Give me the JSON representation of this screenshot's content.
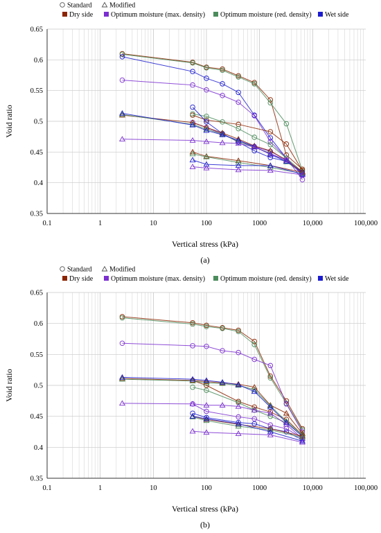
{
  "legend_markers": {
    "standard": "Standard",
    "modified": "Modified"
  },
  "legend_conditions": [
    {
      "name": "Dry side",
      "color": "#8B2500"
    },
    {
      "name": "Optimum moisture (max. density)",
      "color": "#7B2FD0"
    },
    {
      "name": "Optimum moisture (red. density)",
      "color": "#4C8C5C"
    },
    {
      "name": "Wet side",
      "color": "#1C1CCF"
    }
  ],
  "chart_data": [
    {
      "type": "scatter",
      "caption": "(a)",
      "xlabel": "Vertical stress (kPa)",
      "ylabel": "Void ratio",
      "x_scale": "log",
      "xlim": [
        0.1,
        100000
      ],
      "ylim": [
        0.35,
        0.65
      ],
      "x_ticks": [
        "0.1",
        "1",
        "10",
        "100",
        "1000",
        "10,000",
        "100,000"
      ],
      "y_ticks": [
        "0.35",
        "0.4",
        "0.45",
        "0.5",
        "0.55",
        "0.6",
        "0.65"
      ],
      "grid": true,
      "legend_position": "top",
      "series": [
        {
          "legend": "Dry side",
          "marker": "circle",
          "color": "#8B2500",
          "x": [
            2.6,
            55,
            100,
            200,
            400,
            800,
            1600,
            3200,
            6400
          ],
          "y": [
            0.61,
            0.596,
            0.588,
            0.585,
            0.574,
            0.563,
            0.535,
            0.445,
            0.422
          ]
        },
        {
          "legend": "Optimum moisture (red. density)",
          "marker": "circle",
          "color": "#4C8C5C",
          "x": [
            2.6,
            55,
            100,
            200,
            400,
            800,
            1600,
            3200,
            6400
          ],
          "y": [
            0.609,
            0.595,
            0.587,
            0.583,
            0.572,
            0.561,
            0.53,
            0.496,
            0.42
          ]
        },
        {
          "legend": "Wet side",
          "marker": "circle",
          "color": "#1C1CCF",
          "x": [
            2.6,
            55,
            100,
            200,
            400,
            800,
            1600,
            3200,
            6400
          ],
          "y": [
            0.605,
            0.581,
            0.57,
            0.561,
            0.547,
            0.51,
            0.473,
            0.44,
            0.412
          ]
        },
        {
          "legend": "Optimum moisture (max. density)",
          "marker": "circle",
          "color": "#7B2FD0",
          "x": [
            2.6,
            55,
            100,
            200,
            400,
            800,
            1600,
            3200,
            6400
          ],
          "y": [
            0.567,
            0.559,
            0.551,
            0.542,
            0.531,
            0.509,
            0.467,
            0.44,
            0.405
          ]
        },
        {
          "legend": "Dry side",
          "marker": "circle",
          "color": "#8B2500",
          "x": [
            55,
            100,
            400,
            1600,
            3200,
            6400
          ],
          "y": [
            0.51,
            0.502,
            0.495,
            0.483,
            0.463,
            0.42
          ]
        },
        {
          "legend": "Optimum moisture (red. density)",
          "marker": "circle",
          "color": "#4C8C5C",
          "x": [
            55,
            100,
            200,
            400,
            800,
            1600,
            3200,
            6400
          ],
          "y": [
            0.512,
            0.508,
            0.499,
            0.488,
            0.474,
            0.462,
            0.44,
            0.418
          ]
        },
        {
          "legend": "Wet side",
          "marker": "circle",
          "color": "#1C1CCF",
          "x": [
            55,
            100,
            200,
            400,
            800,
            1600,
            3200,
            6400
          ],
          "y": [
            0.523,
            0.499,
            0.48,
            0.466,
            0.452,
            0.441,
            0.435,
            0.417
          ]
        },
        {
          "legend": "Optimum moisture (max. density)",
          "marker": "circle",
          "color": "#7B2FD0",
          "x": [
            55,
            100,
            200,
            400,
            800,
            1600,
            3200,
            6400
          ],
          "y": [
            0.498,
            0.49,
            0.479,
            0.467,
            0.459,
            0.451,
            0.437,
            0.414
          ]
        },
        {
          "legend": "Dry side",
          "marker": "triangle",
          "color": "#8B2500",
          "x": [
            2.6,
            55,
            100,
            200,
            400,
            800,
            1600,
            3200,
            6400
          ],
          "y": [
            0.51,
            0.498,
            0.49,
            0.481,
            0.471,
            0.46,
            0.452,
            0.437,
            0.418
          ]
        },
        {
          "legend": "Optimum moisture (red. density)",
          "marker": "triangle",
          "color": "#4C8C5C",
          "x": [
            2.6,
            55,
            100,
            200,
            400,
            800,
            1600,
            3200,
            6400
          ],
          "y": [
            0.511,
            0.495,
            0.487,
            0.479,
            0.467,
            0.458,
            0.448,
            0.434,
            0.416
          ]
        },
        {
          "legend": "Wet side",
          "marker": "triangle",
          "color": "#1C1CCF",
          "x": [
            2.6,
            55,
            100,
            200,
            400,
            800,
            1600,
            3200,
            6400
          ],
          "y": [
            0.513,
            0.494,
            0.485,
            0.478,
            0.469,
            0.459,
            0.446,
            0.435,
            0.417
          ]
        },
        {
          "legend": "Optimum moisture (max. density)",
          "marker": "triangle",
          "color": "#7B2FD0",
          "x": [
            2.6,
            55,
            100,
            200,
            400,
            800,
            1600,
            3200,
            6400
          ],
          "y": [
            0.471,
            0.469,
            0.467,
            0.465,
            0.464,
            0.458,
            0.447,
            0.437,
            0.415
          ]
        },
        {
          "legend": "Dry side",
          "marker": "triangle",
          "color": "#8B2500",
          "x": [
            55,
            100,
            400,
            1600,
            6400
          ],
          "y": [
            0.45,
            0.443,
            0.436,
            0.428,
            0.417
          ]
        },
        {
          "legend": "Optimum moisture (red. density)",
          "marker": "triangle",
          "color": "#4C8C5C",
          "x": [
            55,
            100,
            400,
            1600,
            6400
          ],
          "y": [
            0.447,
            0.442,
            0.433,
            0.425,
            0.415
          ]
        },
        {
          "legend": "Wet side",
          "marker": "triangle",
          "color": "#1C1CCF",
          "x": [
            55,
            100,
            400,
            1600,
            6400
          ],
          "y": [
            0.437,
            0.43,
            0.428,
            0.428,
            0.414
          ]
        },
        {
          "legend": "Optimum moisture (max. density)",
          "marker": "triangle",
          "color": "#7B2FD0",
          "x": [
            55,
            100,
            400,
            1600,
            6400
          ],
          "y": [
            0.426,
            0.424,
            0.421,
            0.42,
            0.413
          ]
        }
      ]
    },
    {
      "type": "scatter",
      "caption": "(b)",
      "xlabel": "Vertical stress (kPa)",
      "ylabel": "Void ratio",
      "x_scale": "log",
      "xlim": [
        0.1,
        100000
      ],
      "ylim": [
        0.35,
        0.65
      ],
      "x_ticks": [
        "0.1",
        "1",
        "10",
        "100",
        "1000",
        "10,000",
        "100,000"
      ],
      "y_ticks": [
        "0.35",
        "0.4",
        "0.45",
        "0.5",
        "0.55",
        "0.6",
        "0.65"
      ],
      "grid": true,
      "legend_position": "top",
      "series": [
        {
          "legend": "Dry side",
          "marker": "circle",
          "color": "#8B2500",
          "x": [
            2.6,
            55,
            100,
            200,
            400,
            800,
            1600,
            3200,
            6400
          ],
          "y": [
            0.611,
            0.601,
            0.597,
            0.593,
            0.589,
            0.571,
            0.515,
            0.475,
            0.43
          ]
        },
        {
          "legend": "Optimum moisture (red. density)",
          "marker": "circle",
          "color": "#4C8C5C",
          "x": [
            2.6,
            55,
            100,
            200,
            400,
            800,
            1600,
            3200,
            6400
          ],
          "y": [
            0.609,
            0.599,
            0.595,
            0.592,
            0.587,
            0.566,
            0.512,
            0.471,
            0.428
          ]
        },
        {
          "legend": "Optimum moisture (max. density)",
          "marker": "circle",
          "color": "#7B2FD0",
          "x": [
            2.6,
            55,
            100,
            200,
            400,
            800,
            1600,
            3200,
            6400
          ],
          "y": [
            0.568,
            0.564,
            0.563,
            0.556,
            0.553,
            0.542,
            0.532,
            0.47,
            0.425
          ]
        },
        {
          "legend": "Dry side",
          "marker": "circle",
          "color": "#8B2500",
          "x": [
            55,
            100,
            400,
            800,
            1600,
            3200,
            6400
          ],
          "y": [
            0.508,
            0.5,
            0.474,
            0.465,
            0.457,
            0.445,
            0.42
          ]
        },
        {
          "legend": "Optimum moisture (red. density)",
          "marker": "circle",
          "color": "#4C8C5C",
          "x": [
            55,
            100,
            400,
            800,
            1600,
            3200,
            6400
          ],
          "y": [
            0.497,
            0.492,
            0.472,
            0.46,
            0.45,
            0.44,
            0.418
          ]
        },
        {
          "legend": "Wet side",
          "marker": "circle",
          "color": "#1C1CCF",
          "x": [
            55,
            100,
            400,
            800,
            1600,
            3200,
            6400
          ],
          "y": [
            0.455,
            0.448,
            0.44,
            0.438,
            0.43,
            0.425,
            0.412
          ]
        },
        {
          "legend": "Optimum moisture (max. density)",
          "marker": "circle",
          "color": "#7B2FD0",
          "x": [
            55,
            100,
            400,
            800,
            1600,
            3200,
            6400
          ],
          "y": [
            0.47,
            0.458,
            0.449,
            0.446,
            0.436,
            0.43,
            0.415
          ]
        },
        {
          "legend": "Dry side",
          "marker": "triangle",
          "color": "#8B2500",
          "x": [
            2.6,
            55,
            100,
            200,
            400,
            800,
            1600,
            3200,
            6400
          ],
          "y": [
            0.511,
            0.508,
            0.506,
            0.504,
            0.502,
            0.497,
            0.468,
            0.455,
            0.422
          ]
        },
        {
          "legend": "Optimum moisture (red. density)",
          "marker": "triangle",
          "color": "#4C8C5C",
          "x": [
            2.6,
            55,
            100,
            200,
            400,
            800,
            1600,
            3200,
            6400
          ],
          "y": [
            0.51,
            0.507,
            0.504,
            0.503,
            0.5,
            0.493,
            0.467,
            0.442,
            0.42
          ]
        },
        {
          "legend": "Wet side",
          "marker": "triangle",
          "color": "#1C1CCF",
          "x": [
            2.6,
            55,
            100,
            200,
            400,
            800,
            1600,
            3200,
            6400
          ],
          "y": [
            0.513,
            0.51,
            0.508,
            0.505,
            0.501,
            0.49,
            0.465,
            0.44,
            0.418
          ]
        },
        {
          "legend": "Optimum moisture (max. density)",
          "marker": "triangle",
          "color": "#7B2FD0",
          "x": [
            2.6,
            55,
            100,
            200,
            400,
            800,
            1600,
            3200,
            6400
          ],
          "y": [
            0.471,
            0.47,
            0.468,
            0.468,
            0.466,
            0.46,
            0.455,
            0.437,
            0.414
          ]
        },
        {
          "legend": "Dry side",
          "marker": "triangle",
          "color": "#8B2500",
          "x": [
            55,
            100,
            400,
            1600,
            6400
          ],
          "y": [
            0.45,
            0.445,
            0.437,
            0.43,
            0.418
          ]
        },
        {
          "legend": "Optimum moisture (red. density)",
          "marker": "triangle",
          "color": "#4C8C5C",
          "x": [
            55,
            100,
            400,
            1600,
            6400
          ],
          "y": [
            0.449,
            0.443,
            0.434,
            0.428,
            0.416
          ]
        },
        {
          "legend": "Wet side",
          "marker": "triangle",
          "color": "#1C1CCF",
          "x": [
            55,
            100,
            400,
            1600,
            6400
          ],
          "y": [
            0.45,
            0.446,
            0.438,
            0.425,
            0.41
          ]
        },
        {
          "legend": "Optimum moisture (max. density)",
          "marker": "triangle",
          "color": "#7B2FD0",
          "x": [
            55,
            100,
            400,
            1600,
            6400
          ],
          "y": [
            0.426,
            0.424,
            0.422,
            0.42,
            0.408
          ]
        }
      ]
    }
  ]
}
